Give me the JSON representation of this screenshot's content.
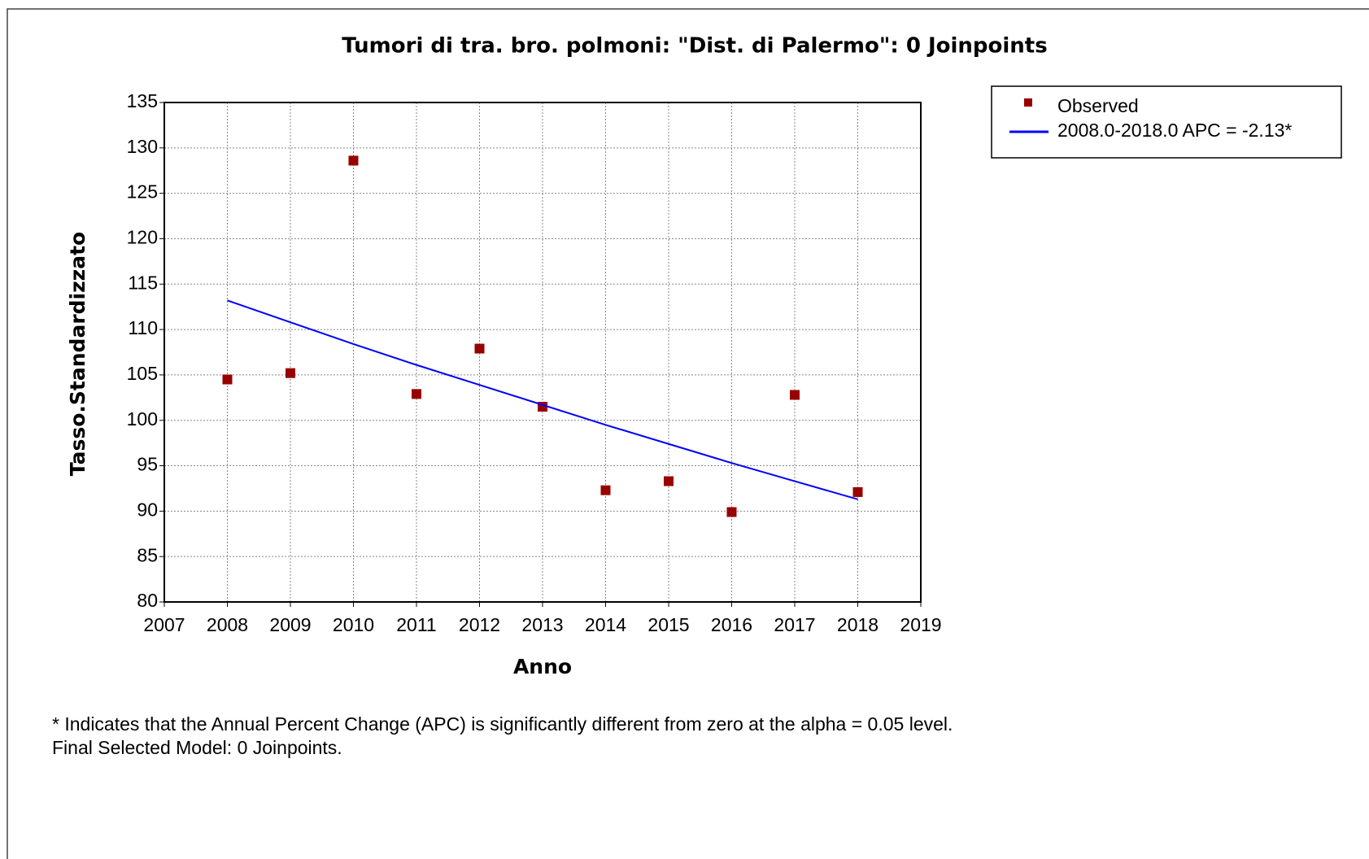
{
  "chart_data": {
    "type": "scatter",
    "title": "Tumori di tra. bro. polmoni: \"Dist. di Palermo\": 0 Joinpoints",
    "xlabel": "Anno",
    "ylabel": "Tasso.Standardizzato",
    "x": [
      2008,
      2009,
      2010,
      2011,
      2012,
      2013,
      2014,
      2015,
      2016,
      2017,
      2018
    ],
    "series": [
      {
        "name": "Observed",
        "type": "scatter",
        "color": "#990000",
        "values": [
          104.5,
          105.2,
          128.6,
          102.9,
          107.9,
          101.5,
          92.3,
          93.3,
          89.9,
          102.8,
          92.1
        ]
      },
      {
        "name": "2008.0-2018.0 APC  = -2.13*",
        "type": "line",
        "color": "#0000ff",
        "values": [
          113.2,
          110.8,
          108.4,
          106.1,
          103.9,
          101.7,
          99.5,
          97.4,
          95.3,
          93.3,
          91.3
        ]
      }
    ],
    "xlim": [
      2007,
      2019
    ],
    "xticks": [
      2007,
      2008,
      2009,
      2010,
      2011,
      2012,
      2013,
      2014,
      2015,
      2016,
      2017,
      2018,
      2019
    ],
    "ylim": [
      80,
      135
    ],
    "yticks": [
      80,
      85,
      90,
      95,
      100,
      105,
      110,
      115,
      120,
      125,
      130,
      135
    ],
    "grid": true,
    "legend": "outside-right",
    "notes": [
      "* Indicates that the Annual Percent Change (APC) is significantly different from zero at the alpha = 0.05 level.",
      "Final Selected Model: 0 Joinpoints."
    ]
  }
}
